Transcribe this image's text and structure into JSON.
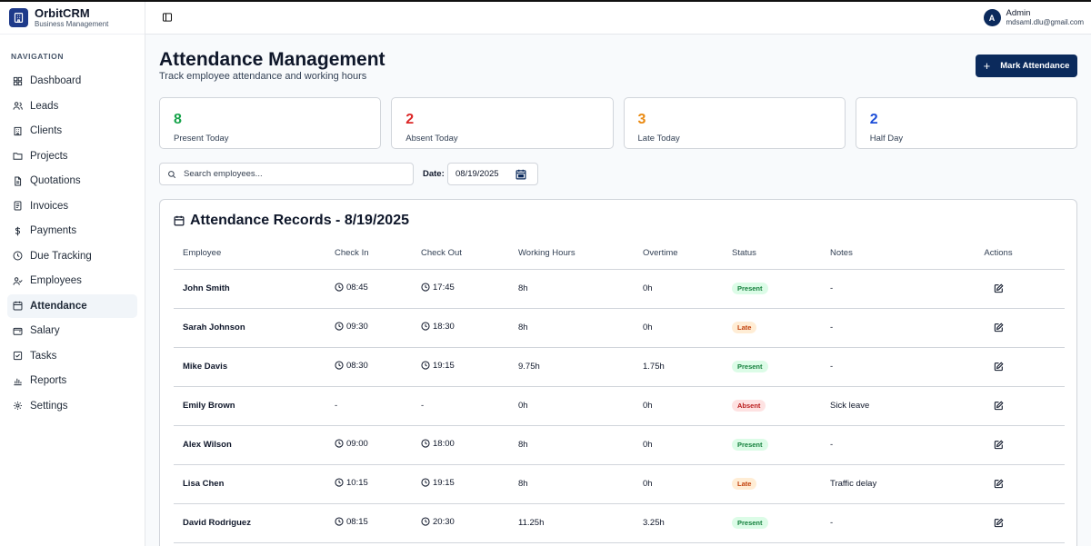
{
  "brand": {
    "name": "OrbitCRM",
    "subtitle": "Business Management"
  },
  "nav": {
    "heading": "NAVIGATION",
    "items": [
      {
        "label": "Dashboard",
        "icon": "grid-icon"
      },
      {
        "label": "Leads",
        "icon": "users-icon"
      },
      {
        "label": "Clients",
        "icon": "building-icon"
      },
      {
        "label": "Projects",
        "icon": "folder-icon"
      },
      {
        "label": "Quotations",
        "icon": "file-icon"
      },
      {
        "label": "Invoices",
        "icon": "receipt-icon"
      },
      {
        "label": "Payments",
        "icon": "dollar-icon"
      },
      {
        "label": "Due Tracking",
        "icon": "clock-icon"
      },
      {
        "label": "Employees",
        "icon": "user-check-icon"
      },
      {
        "label": "Attendance",
        "icon": "calendar-icon",
        "active": true
      },
      {
        "label": "Salary",
        "icon": "wallet-icon"
      },
      {
        "label": "Tasks",
        "icon": "checkbox-icon"
      },
      {
        "label": "Reports",
        "icon": "bar-chart-icon"
      },
      {
        "label": "Settings",
        "icon": "gear-icon"
      }
    ]
  },
  "user": {
    "initial": "A",
    "name": "Admin",
    "email": "mdsaml.dlu@gmail.com"
  },
  "header": {
    "title": "Attendance Management",
    "subtitle": "Track employee attendance and working hours",
    "mark_button": "Mark Attendance"
  },
  "stats": [
    {
      "value": "8",
      "label": "Present Today",
      "color": "#16a34a"
    },
    {
      "value": "2",
      "label": "Absent Today",
      "color": "#dc2626"
    },
    {
      "value": "3",
      "label": "Late Today",
      "color": "#ea8a12"
    },
    {
      "value": "2",
      "label": "Half Day",
      "color": "#1d4ed8"
    }
  ],
  "filters": {
    "search_placeholder": "Search employees...",
    "date_label": "Date:",
    "date_value": "08/19/2025"
  },
  "records": {
    "title": "Attendance Records - 8/19/2025",
    "columns": [
      "Employee",
      "Check In",
      "Check Out",
      "Working Hours",
      "Overtime",
      "Status",
      "Notes",
      "Actions"
    ],
    "rows": [
      {
        "employee": "John Smith",
        "check_in": "08:45",
        "check_out": "17:45",
        "hours": "8h",
        "overtime": "0h",
        "status": "Present",
        "notes": "-"
      },
      {
        "employee": "Sarah Johnson",
        "check_in": "09:30",
        "check_out": "18:30",
        "hours": "8h",
        "overtime": "0h",
        "status": "Late",
        "notes": "-"
      },
      {
        "employee": "Mike Davis",
        "check_in": "08:30",
        "check_out": "19:15",
        "hours": "9.75h",
        "overtime": "1.75h",
        "status": "Present",
        "notes": "-"
      },
      {
        "employee": "Emily Brown",
        "check_in": "-",
        "check_out": "-",
        "hours": "0h",
        "overtime": "0h",
        "status": "Absent",
        "notes": "Sick leave"
      },
      {
        "employee": "Alex Wilson",
        "check_in": "09:00",
        "check_out": "18:00",
        "hours": "8h",
        "overtime": "0h",
        "status": "Present",
        "notes": "-"
      },
      {
        "employee": "Lisa Chen",
        "check_in": "10:15",
        "check_out": "19:15",
        "hours": "8h",
        "overtime": "0h",
        "status": "Late",
        "notes": "Traffic delay"
      },
      {
        "employee": "David Rodriguez",
        "check_in": "08:15",
        "check_out": "20:30",
        "hours": "11.25h",
        "overtime": "3.25h",
        "status": "Present",
        "notes": "-"
      }
    ]
  }
}
